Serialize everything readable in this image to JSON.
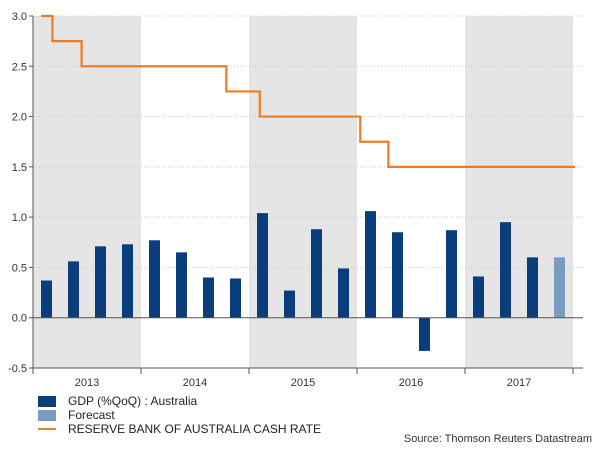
{
  "chart_data": {
    "type": "bar",
    "title": "",
    "xlabel": "",
    "ylabel": "",
    "ylim": [
      -0.5,
      3.0
    ],
    "yticks": [
      "-0.5",
      "0.0",
      "0.5",
      "1.0",
      "1.5",
      "2.0",
      "2.5",
      "3.0"
    ],
    "years": [
      "2013",
      "2014",
      "2015",
      "2016",
      "2017"
    ],
    "shaded_years": [
      "2013",
      "2015",
      "2017"
    ],
    "quarters": [
      "2013 Q1",
      "2013 Q2",
      "2013 Q3",
      "2013 Q4",
      "2014 Q1",
      "2014 Q2",
      "2014 Q3",
      "2014 Q4",
      "2015 Q1",
      "2015 Q2",
      "2015 Q3",
      "2015 Q4",
      "2016 Q1",
      "2016 Q2",
      "2016 Q3",
      "2016 Q4",
      "2017 Q1",
      "2017 Q2",
      "2017 Q3",
      "2017 Q4"
    ],
    "series": [
      {
        "name": "GDP (%QoQ) : Australia",
        "kind": "bar",
        "color": "#0a3d7c",
        "values": [
          0.37,
          0.56,
          0.71,
          0.73,
          0.77,
          0.65,
          0.4,
          0.39,
          1.04,
          0.27,
          0.88,
          0.49,
          1.06,
          0.85,
          -0.33,
          0.87,
          0.41,
          0.95,
          0.6,
          null
        ]
      },
      {
        "name": "Forecast",
        "kind": "bar",
        "color": "#7a9cc2",
        "values": [
          null,
          null,
          null,
          null,
          null,
          null,
          null,
          null,
          null,
          null,
          null,
          null,
          null,
          null,
          null,
          null,
          null,
          null,
          null,
          0.6
        ]
      },
      {
        "name": "RESERVE BANK OF AUSTRALIA CASH RATE",
        "kind": "step-line",
        "color": "#f07c1e",
        "x": [
          2013.0,
          2013.18,
          2013.45,
          2014.79,
          2015.1,
          2016.03,
          2016.29,
          2017.61
        ],
        "values": [
          3.0,
          2.75,
          2.5,
          2.25,
          2.0,
          1.75,
          1.5,
          1.5
        ]
      }
    ],
    "legend_position": "bottom-left",
    "grid": true
  },
  "source": "Source: Thomson Reuters Datastream"
}
